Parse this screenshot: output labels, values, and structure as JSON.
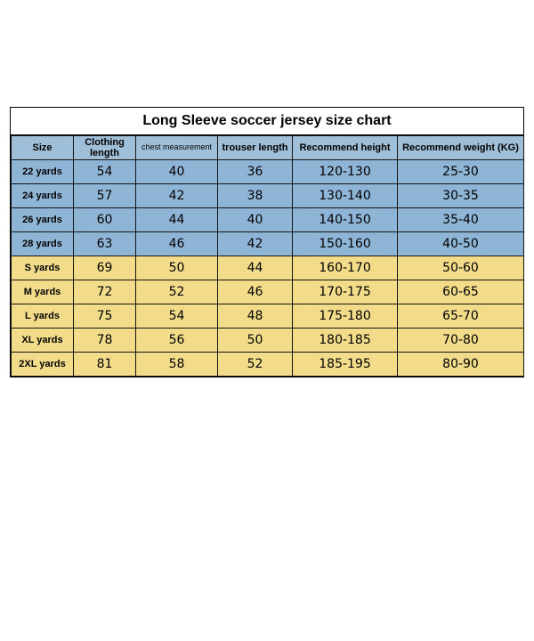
{
  "title": "Long Sleeve soccer jersey size chart",
  "columns": [
    "Size",
    "Clothing length",
    "chest measurement",
    "trouser length",
    "Recommend height",
    "Recommend weight (KG)"
  ],
  "header_bg": "#9fbfd8",
  "row_colors": {
    "youth": "#8eb4d6",
    "adult": "#f2dc8a"
  },
  "rows": [
    {
      "g": "youth",
      "cells": [
        "22 yards",
        "54",
        "40",
        "36",
        "120-130",
        "25-30"
      ]
    },
    {
      "g": "youth",
      "cells": [
        "24 yards",
        "57",
        "42",
        "38",
        "130-140",
        "30-35"
      ]
    },
    {
      "g": "youth",
      "cells": [
        "26 yards",
        "60",
        "44",
        "40",
        "140-150",
        "35-40"
      ]
    },
    {
      "g": "youth",
      "cells": [
        "28 yards",
        "63",
        "46",
        "42",
        "150-160",
        "40-50"
      ]
    },
    {
      "g": "adult",
      "cells": [
        "S yards",
        "69",
        "50",
        "44",
        "160-170",
        "50-60"
      ]
    },
    {
      "g": "adult",
      "cells": [
        "M yards",
        "72",
        "52",
        "46",
        "170-175",
        "60-65"
      ]
    },
    {
      "g": "adult",
      "cells": [
        "L yards",
        "75",
        "54",
        "48",
        "175-180",
        "65-70"
      ]
    },
    {
      "g": "adult",
      "cells": [
        "XL yards",
        "78",
        "56",
        "50",
        "180-185",
        "70-80"
      ]
    },
    {
      "g": "adult",
      "cells": [
        "2XL yards",
        "81",
        "58",
        "52",
        "185-195",
        "80-90"
      ]
    }
  ]
}
